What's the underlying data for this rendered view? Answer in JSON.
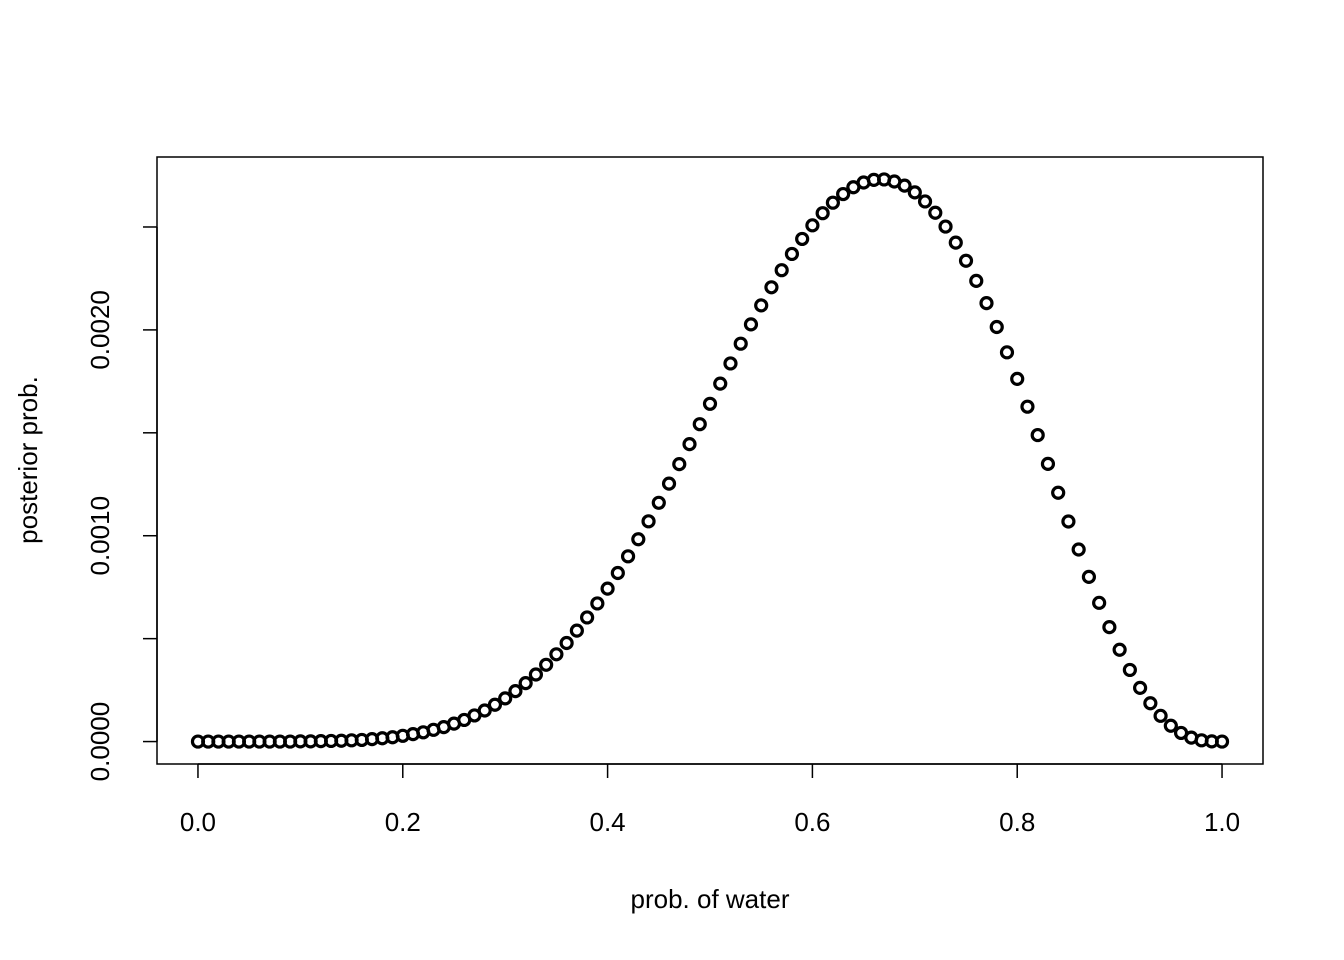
{
  "chart_data": {
    "type": "scatter",
    "x_label": "prob. of water",
    "y_label": "posterior prob.",
    "xlim": [
      -0.04,
      1.04
    ],
    "ylim": [
      -0.000109,
      0.00284
    ],
    "xticks": [
      {
        "value": 0,
        "label": "0.0"
      },
      {
        "value": 0.2,
        "label": "0.2"
      },
      {
        "value": 0.4,
        "label": "0.4"
      },
      {
        "value": 0.6,
        "label": "0.6"
      },
      {
        "value": 0.8,
        "label": "0.8"
      },
      {
        "value": 1,
        "label": "1.0"
      }
    ],
    "yticks": [
      {
        "value": 0,
        "label": "0.0000"
      },
      {
        "value": 0.0005,
        "label": null
      },
      {
        "value": 0.001,
        "label": "0.0010"
      },
      {
        "value": 0.0015,
        "label": null
      },
      {
        "value": 0.002,
        "label": "0.0020"
      },
      {
        "value": 0.0025,
        "label": null
      }
    ],
    "color": "#000000",
    "x": [
      0,
      0.01,
      0.02,
      0.03,
      0.04,
      0.05,
      0.06,
      0.07,
      0.08,
      0.09,
      0.1,
      0.11,
      0.12,
      0.13,
      0.14,
      0.15,
      0.16,
      0.17,
      0.18,
      0.19,
      0.2,
      0.21,
      0.22,
      0.23,
      0.24,
      0.25,
      0.26,
      0.27,
      0.28,
      0.29,
      0.3,
      0.31,
      0.32,
      0.33,
      0.34,
      0.35,
      0.36,
      0.37,
      0.38,
      0.39,
      0.4,
      0.41,
      0.42,
      0.43,
      0.44,
      0.45,
      0.46,
      0.47,
      0.48,
      0.49,
      0.5,
      0.51,
      0.52,
      0.53,
      0.54,
      0.55,
      0.56,
      0.57,
      0.58,
      0.59,
      0.6,
      0.61,
      0.62,
      0.63,
      0.64,
      0.65,
      0.66,
      0.67,
      0.68,
      0.69,
      0.7,
      0.71,
      0.72,
      0.73,
      0.74,
      0.75,
      0.76,
      0.77,
      0.78,
      0.79,
      0.8,
      0.81,
      0.82,
      0.83,
      0.84,
      0.85,
      0.86,
      0.87,
      0.88,
      0.89,
      0.9,
      0.91,
      0.92,
      0.93,
      0.94,
      0.95,
      0.96,
      0.97,
      0.98,
      0.99,
      1
    ],
    "values": [
      0,
      0,
      0,
      0,
      0,
      0,
      0,
      0,
      0,
      0,
      1e-06,
      1e-06,
      2e-06,
      3e-06,
      4e-06,
      6e-06,
      8e-06,
      1.2e-05,
      1.6e-05,
      2.1e-05,
      2.8e-05,
      3.6e-05,
      4.5e-05,
      5.7e-05,
      7e-05,
      8.7e-05,
      0.000105,
      0.000127,
      0.000151,
      0.000179,
      0.00021,
      0.000245,
      0.000284,
      0.000326,
      0.000373,
      0.000424,
      0.000479,
      0.000539,
      0.000603,
      0.000671,
      0.000743,
      0.000819,
      0.0009,
      0.000983,
      0.00107,
      0.00116,
      0.001253,
      0.001348,
      0.001445,
      0.001542,
      0.001641,
      0.001739,
      0.001837,
      0.001933,
      0.002027,
      0.002119,
      0.002207,
      0.00229,
      0.002369,
      0.002442,
      0.002508,
      0.002567,
      0.002618,
      0.00266,
      0.002693,
      0.002716,
      0.002729,
      0.002731,
      0.002721,
      0.002701,
      0.002668,
      0.002624,
      0.002569,
      0.002502,
      0.002424,
      0.002336,
      0.002238,
      0.00213,
      0.002014,
      0.001891,
      0.001762,
      0.001627,
      0.001489,
      0.001349,
      0.001209,
      0.001069,
      0.000933,
      0.0008,
      0.000674,
      0.000556,
      0.000446,
      0.000348,
      0.000261,
      0.000186,
      0.000125,
      7.7e-05,
      4.2e-05,
      1.9e-05,
      6e-06,
      1e-06,
      0
    ]
  }
}
